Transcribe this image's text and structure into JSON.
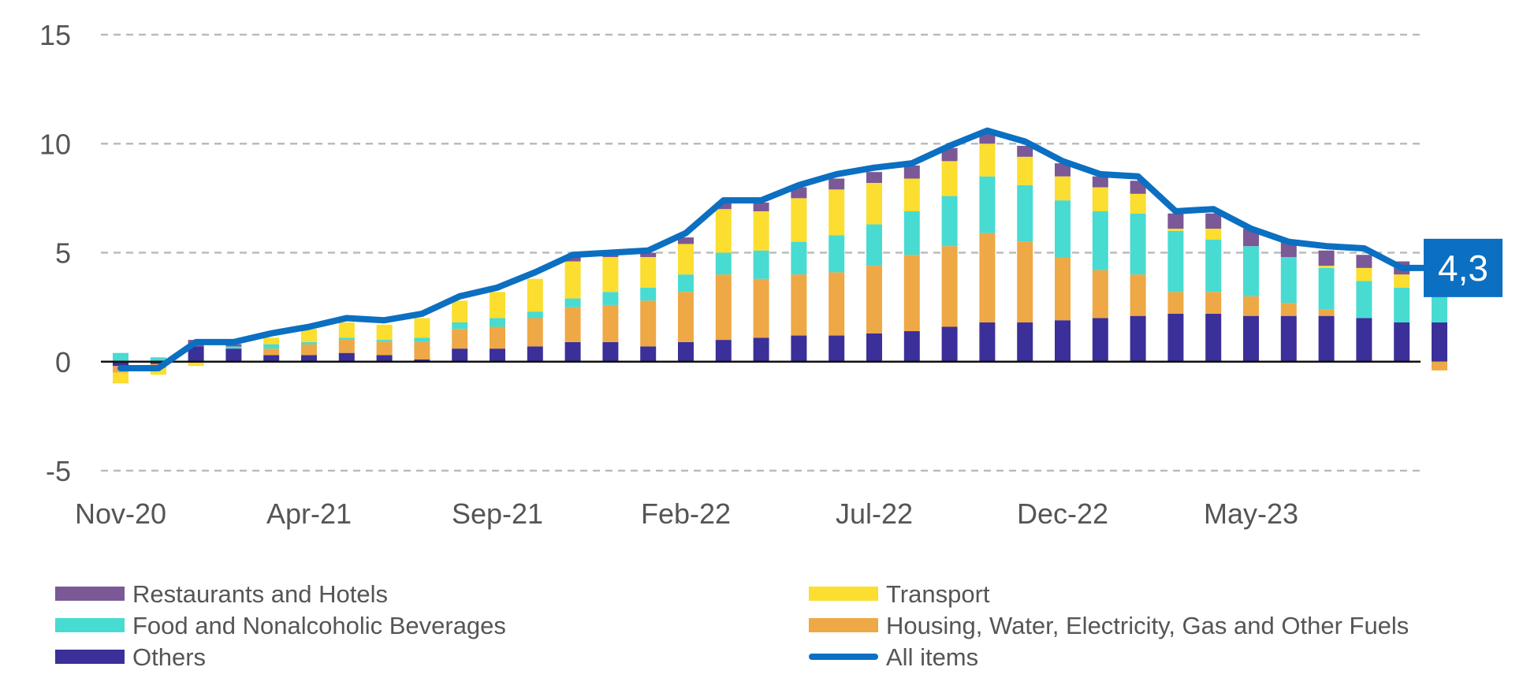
{
  "chart_data": {
    "type": "bar",
    "stacked": true,
    "categories": [
      "Nov-20",
      "Dec-20",
      "Jan-21",
      "Feb-21",
      "Mar-21",
      "Apr-21",
      "May-21",
      "Jun-21",
      "Jul-21",
      "Aug-21",
      "Sep-21",
      "Oct-21",
      "Nov-21",
      "Dec-21",
      "Jan-22",
      "Feb-22",
      "Mar-22",
      "Apr-22",
      "May-22",
      "Jun-22",
      "Jul-22",
      "Aug-22",
      "Sep-22",
      "Oct-22",
      "Nov-22",
      "Dec-22",
      "Jan-23",
      "Feb-23",
      "Mar-23",
      "Apr-23",
      "May-23",
      "Jun-23",
      "Jul-23",
      "Aug-23",
      "Sep-23",
      "Oct-23"
    ],
    "x_tick_labels": [
      "Nov-20",
      "Apr-21",
      "Sep-21",
      "Feb-22",
      "Jul-22",
      "Dec-22",
      "May-23"
    ],
    "ylim": [
      -5,
      15
    ],
    "y_ticks": [
      "15",
      "10",
      "5",
      "0",
      "-5"
    ],
    "grid": true,
    "legend_position": "bottom",
    "series": [
      {
        "name": "Others",
        "color": "#3b2f99",
        "values": [
          -0.2,
          -0.1,
          0.7,
          0.6,
          0.3,
          0.3,
          0.4,
          0.3,
          0.1,
          0.6,
          0.6,
          0.7,
          0.9,
          0.9,
          0.7,
          0.9,
          1.0,
          1.1,
          1.2,
          1.2,
          1.3,
          1.4,
          1.6,
          1.8,
          1.8,
          1.9,
          2.0,
          2.1,
          2.2,
          2.2,
          2.1,
          2.1,
          2.1,
          2.0,
          1.8,
          1.8
        ]
      },
      {
        "name": "Housing, Water, Electricity, Gas and Other Fuels",
        "color": "#eea845",
        "values": [
          -0.3,
          -0.2,
          0.0,
          0.0,
          0.3,
          0.5,
          0.6,
          0.6,
          0.8,
          0.9,
          1.0,
          1.3,
          1.6,
          1.7,
          2.1,
          2.3,
          3.0,
          2.7,
          2.8,
          2.9,
          3.1,
          3.5,
          3.7,
          4.1,
          3.7,
          2.9,
          2.2,
          1.9,
          1.0,
          1.0,
          0.9,
          0.6,
          0.3,
          0.0,
          0.0,
          -0.4
        ]
      },
      {
        "name": "Food and Nonalcoholic Beverages",
        "color": "#48dbd2",
        "values": [
          0.4,
          0.2,
          0.0,
          0.1,
          0.2,
          0.1,
          0.1,
          0.1,
          0.2,
          0.3,
          0.4,
          0.3,
          0.4,
          0.6,
          0.6,
          0.8,
          1.0,
          1.3,
          1.5,
          1.7,
          1.9,
          2.0,
          2.3,
          2.6,
          2.6,
          2.6,
          2.7,
          2.8,
          2.8,
          2.4,
          2.3,
          2.1,
          1.9,
          1.7,
          1.6,
          1.5
        ]
      },
      {
        "name": "Transport",
        "color": "#fbde2f",
        "values": [
          -0.5,
          -0.3,
          -0.2,
          0.0,
          0.3,
          0.6,
          0.7,
          0.7,
          0.9,
          1.0,
          1.2,
          1.5,
          1.7,
          1.6,
          1.4,
          1.4,
          2.0,
          1.8,
          2.0,
          2.1,
          1.9,
          1.5,
          1.6,
          1.5,
          1.3,
          1.1,
          1.1,
          0.9,
          0.1,
          0.5,
          0.0,
          0.0,
          0.1,
          0.6,
          0.6,
          0.5
        ]
      },
      {
        "name": "Restaurants and Hotels",
        "color": "#7b5896",
        "values": [
          0.0,
          0.0,
          0.3,
          0.1,
          0.0,
          0.0,
          0.0,
          0.0,
          0.0,
          0.0,
          0.0,
          0.0,
          0.2,
          0.1,
          0.2,
          0.3,
          0.3,
          0.4,
          0.5,
          0.5,
          0.5,
          0.6,
          0.6,
          0.5,
          0.5,
          0.6,
          0.5,
          0.6,
          0.7,
          0.7,
          0.8,
          0.7,
          0.7,
          0.6,
          0.6,
          0.6
        ]
      },
      {
        "name": "All items",
        "color": "#0b6fc2",
        "type": "line",
        "values": [
          -0.3,
          -0.3,
          0.9,
          0.9,
          1.3,
          1.6,
          2.0,
          1.9,
          2.2,
          3.0,
          3.4,
          4.1,
          4.9,
          5.0,
          5.1,
          5.9,
          7.4,
          7.4,
          8.1,
          8.6,
          8.9,
          9.1,
          9.9,
          10.6,
          10.1,
          9.2,
          8.6,
          8.5,
          6.9,
          7.0,
          6.1,
          5.5,
          5.3,
          5.2,
          4.3,
          4.3
        ]
      }
    ],
    "legend_order": [
      "Restaurants and Hotels",
      "Transport",
      "Food and Nonalcoholic Beverages",
      "Housing, Water, Electricity, Gas and Other Fuels",
      "Others",
      "All items"
    ],
    "callout": {
      "label": "4,3",
      "color": "#0b6fc2",
      "value": 4.3
    }
  }
}
